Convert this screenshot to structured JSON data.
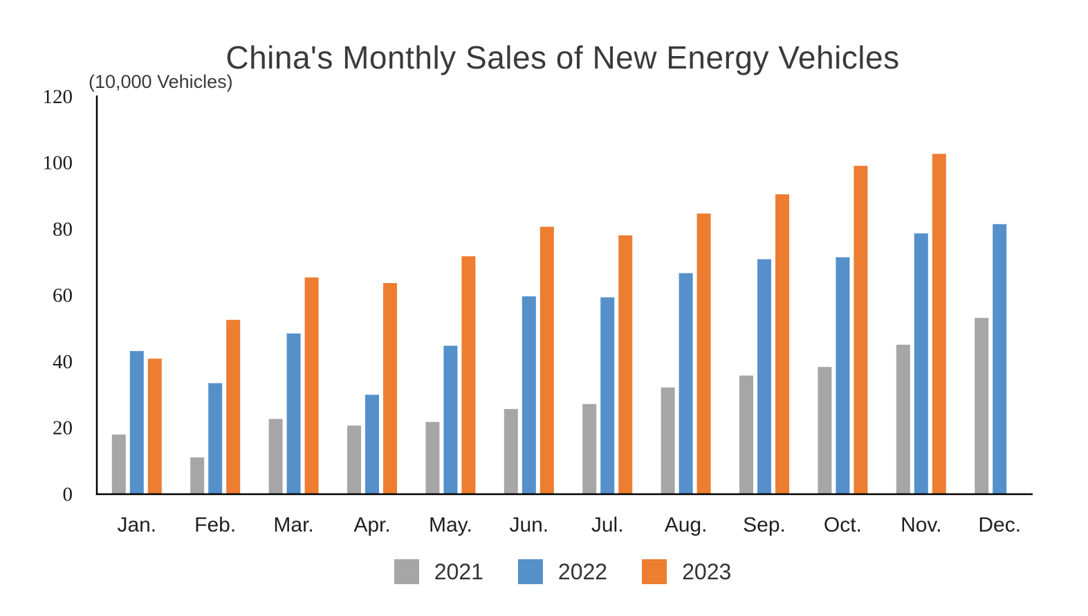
{
  "chart_data": {
    "type": "bar",
    "title": "China's Monthly Sales of New Energy Vehicles",
    "unit_label": "(10,000 Vehicles)",
    "categories": [
      "Jan.",
      "Feb.",
      "Mar.",
      "Apr.",
      "May.",
      "Jun.",
      "Jul.",
      "Aug.",
      "Sep.",
      "Oct.",
      "Nov.",
      "Dec."
    ],
    "series": [
      {
        "name": "2021",
        "color": "#A6A6A6",
        "values": [
          17.9,
          11.0,
          22.6,
          20.6,
          21.7,
          25.6,
          27.1,
          32.1,
          35.7,
          38.3,
          45.0,
          53.1
        ]
      },
      {
        "name": "2022",
        "color": "#5590CB",
        "values": [
          43.1,
          33.4,
          48.4,
          29.9,
          44.7,
          59.6,
          59.3,
          66.6,
          70.8,
          71.4,
          78.6,
          81.4
        ]
      },
      {
        "name": "2023",
        "color": "#ED7D31",
        "values": [
          40.8,
          52.5,
          65.3,
          63.6,
          71.7,
          80.6,
          78.0,
          84.6,
          90.4,
          99.0,
          102.6,
          null
        ]
      }
    ],
    "ylim": [
      0,
      120
    ],
    "ytick_interval": 20,
    "ytick_labels": [
      "0",
      "20",
      "40",
      "60",
      "80",
      "100",
      "120"
    ],
    "grid": false,
    "legend_position": "bottom",
    "axis_color": "#000000",
    "tick_label_color": "#1a1a1a",
    "month_label_color": "#1f1f1f"
  }
}
